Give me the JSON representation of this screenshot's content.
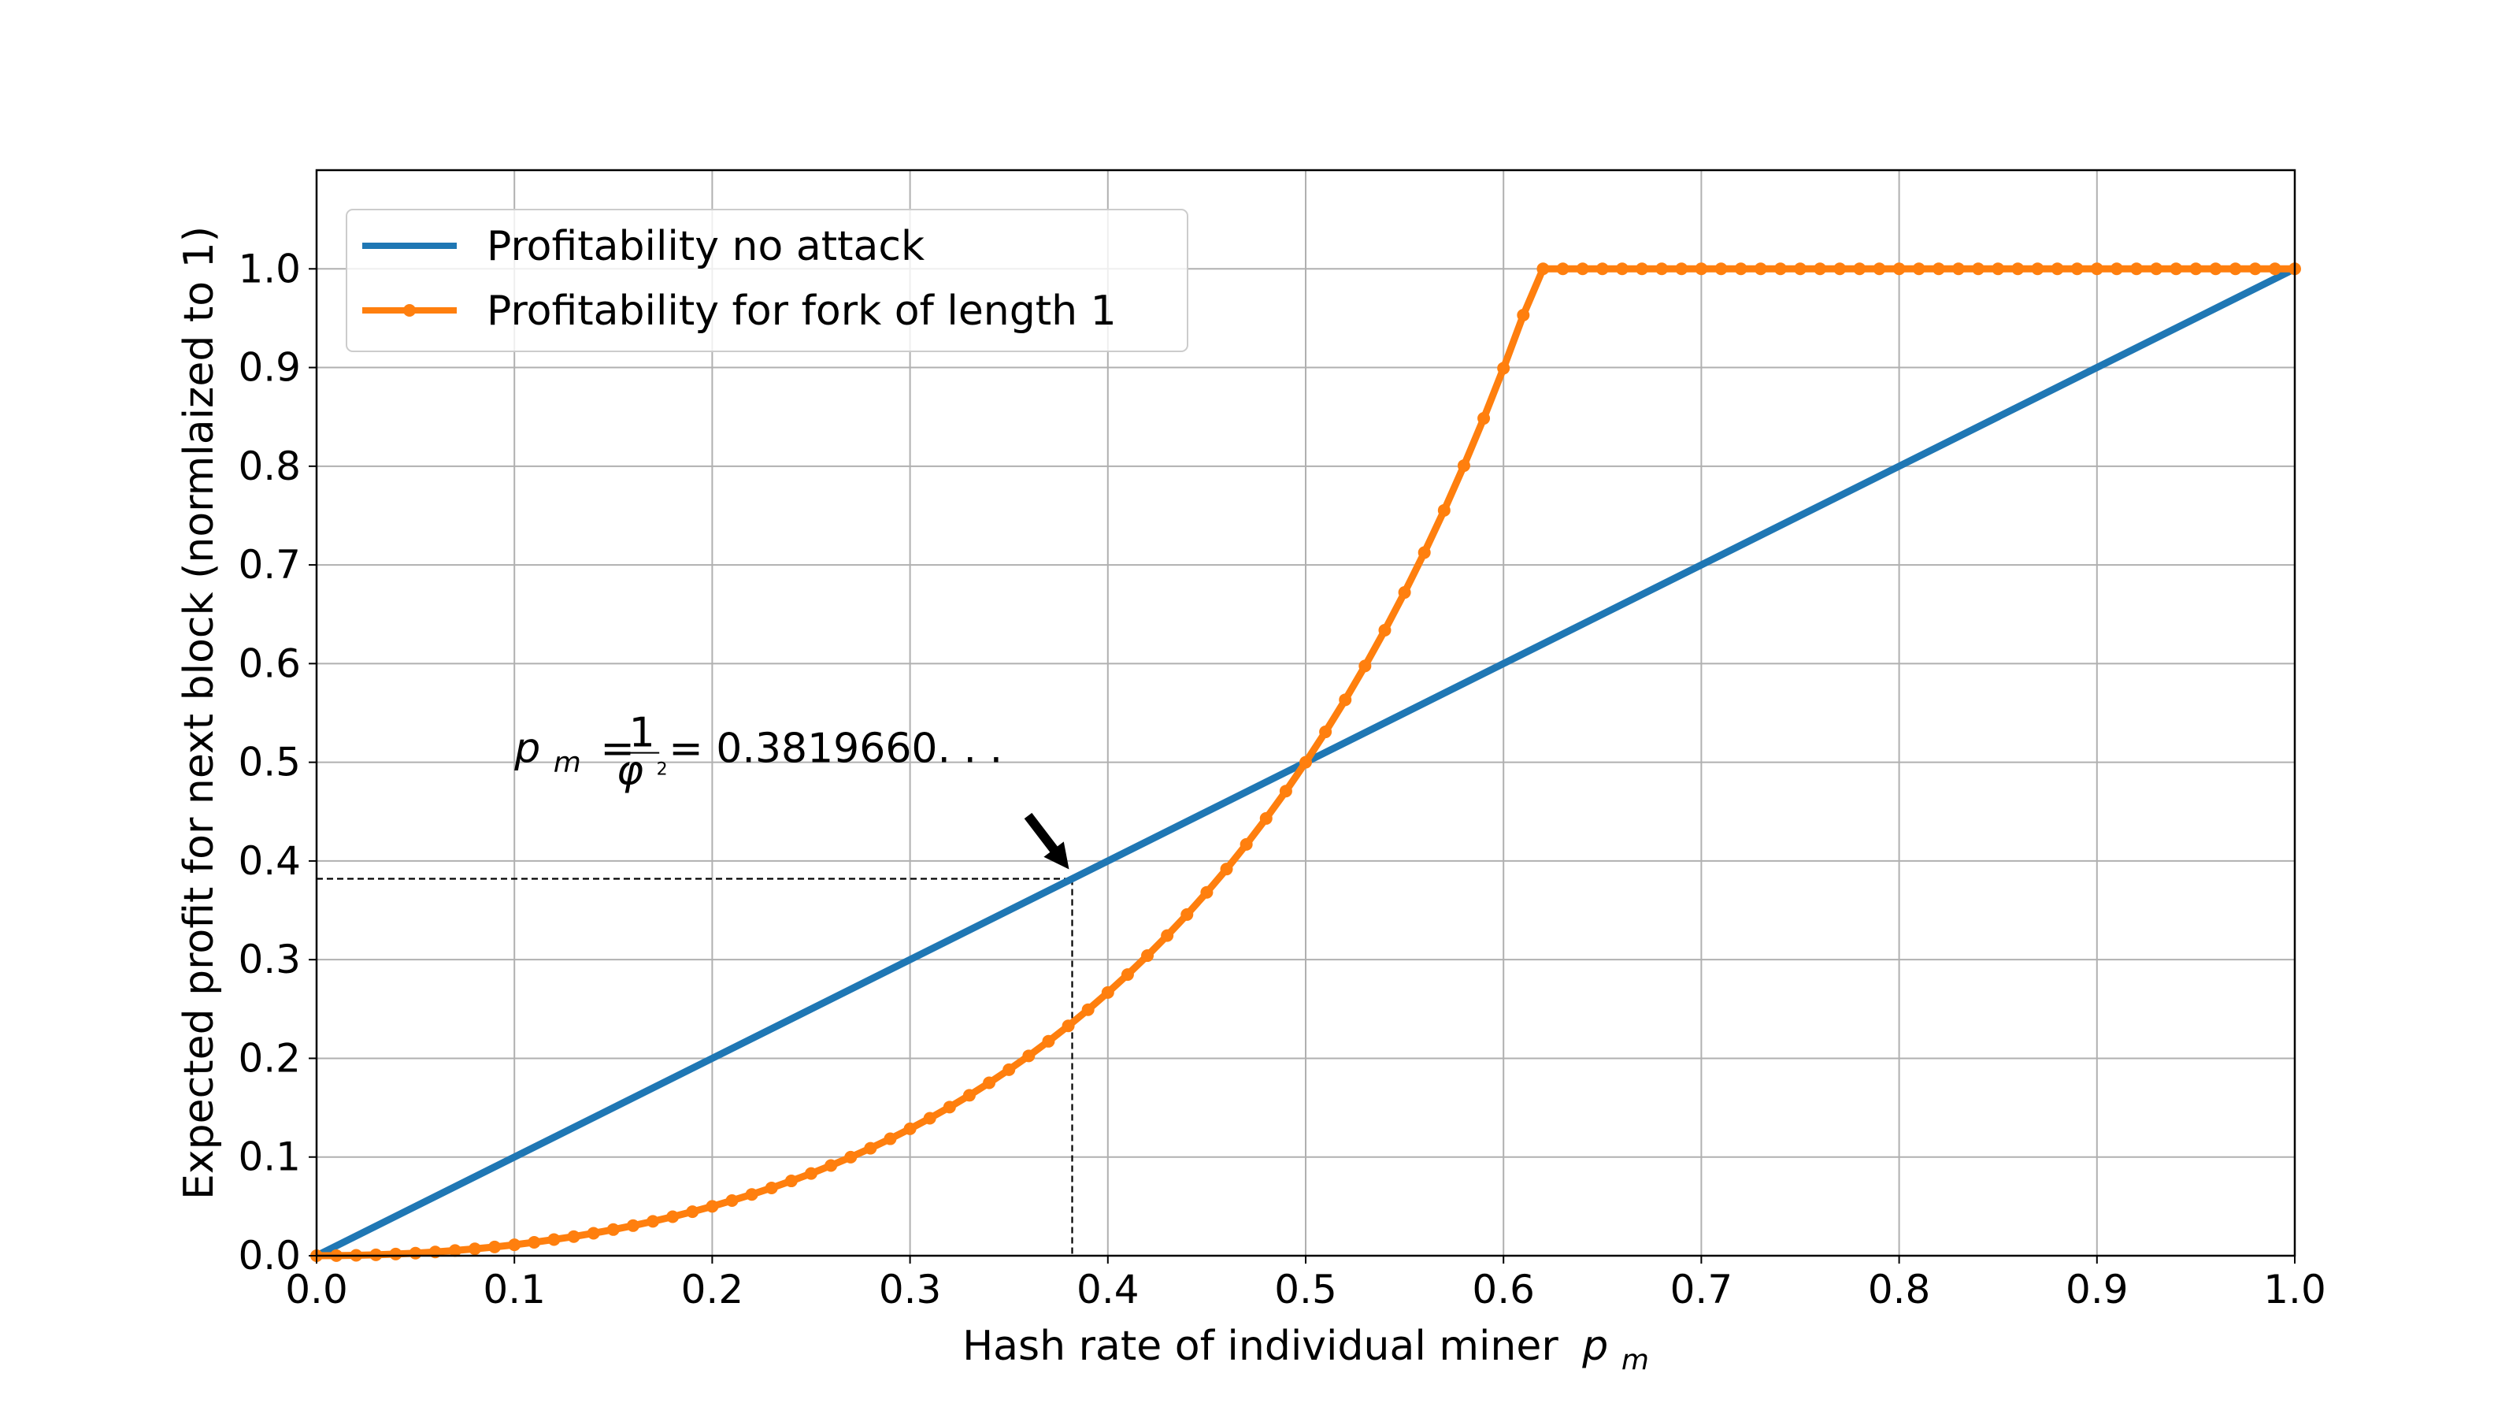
{
  "chart_data": {
    "type": "line",
    "title": "",
    "xlabel": "Hash rate of individual miner",
    "xlabel_symbol": "p",
    "xlabel_subscript": "m",
    "ylabel": "Expected profit for next block (normlaized to 1)",
    "xlim": [
      0.0,
      1.0
    ],
    "ylim": [
      0.0,
      1.1
    ],
    "x_ticks": [
      0.0,
      0.1,
      0.2,
      0.3,
      0.4,
      0.5,
      0.6,
      0.7,
      0.8,
      0.9,
      1.0
    ],
    "x_tick_labels": [
      "0.0",
      "0.1",
      "0.2",
      "0.3",
      "0.4",
      "0.5",
      "0.6",
      "0.7",
      "0.8",
      "0.9",
      "1.0"
    ],
    "y_ticks": [
      0.0,
      0.1,
      0.2,
      0.3,
      0.4,
      0.5,
      0.6,
      0.7,
      0.8,
      0.9,
      1.0
    ],
    "y_tick_labels": [
      "0.0",
      "0.1",
      "0.2",
      "0.3",
      "0.4",
      "0.5",
      "0.6",
      "0.7",
      "0.8",
      "0.9",
      "1.0"
    ],
    "grid": true,
    "legend_position": "top-left",
    "series": [
      {
        "name": "Profitability no attack",
        "color": "#1f77b4",
        "marker": "none",
        "x": [
          0.0,
          1.0
        ],
        "y": [
          0.0,
          1.0
        ]
      },
      {
        "name": "Profitability for fork of length 1",
        "color": "#ff7f0e",
        "marker": "circle",
        "x": [
          0.0,
          0.01,
          0.02,
          0.03,
          0.04,
          0.05,
          0.06,
          0.07,
          0.08,
          0.09,
          0.1,
          0.11,
          0.12,
          0.13,
          0.14,
          0.15,
          0.16,
          0.17,
          0.18,
          0.19,
          0.2,
          0.21,
          0.22,
          0.23,
          0.24,
          0.25,
          0.26,
          0.27,
          0.28,
          0.29,
          0.3,
          0.31,
          0.32,
          0.33,
          0.34,
          0.35,
          0.36,
          0.37,
          0.38,
          0.39,
          0.4,
          0.41,
          0.42,
          0.43,
          0.44,
          0.45,
          0.46,
          0.47,
          0.48,
          0.49,
          0.5,
          0.51,
          0.52,
          0.53,
          0.54,
          0.55,
          0.56,
          0.57,
          0.58,
          0.59,
          0.6,
          0.61,
          0.62,
          0.63,
          0.64,
          0.65,
          0.66,
          0.67,
          0.68,
          0.69,
          0.7,
          0.71,
          0.72,
          0.73,
          0.74,
          0.75,
          0.76,
          0.77,
          0.78,
          0.79,
          0.8,
          0.81,
          0.82,
          0.83,
          0.84,
          0.85,
          0.86,
          0.87,
          0.88,
          0.89,
          0.9,
          0.91,
          0.92,
          0.93,
          0.94,
          0.95,
          0.96,
          0.97,
          0.98,
          0.99,
          1.0
        ],
        "y": [
          0.0,
          0.0001,
          0.0004,
          0.0009,
          0.0017,
          0.0026,
          0.0038,
          0.0053,
          0.007,
          0.0089,
          0.0111,
          0.0136,
          0.0164,
          0.0194,
          0.0228,
          0.0265,
          0.0305,
          0.0348,
          0.0395,
          0.0446,
          0.05,
          0.0559,
          0.0621,
          0.0687,
          0.0758,
          0.0833,
          0.0914,
          0.0999,
          0.1089,
          0.1185,
          0.1286,
          0.1393,
          0.1506,
          0.1625,
          0.1752,
          0.1885,
          0.2025,
          0.2173,
          0.2329,
          0.2493,
          0.2667,
          0.2849,
          0.3041,
          0.3244,
          0.3457,
          0.3682,
          0.3918,
          0.4168,
          0.4431,
          0.4708,
          0.5,
          0.5308,
          0.5633,
          0.5976,
          0.6338,
          0.6721,
          0.7125,
          0.7553,
          0.8006,
          0.8485,
          0.8993,
          0.9531,
          1.0,
          1.0,
          1.0,
          1.0,
          1.0,
          1.0,
          1.0,
          1.0,
          1.0,
          1.0,
          1.0,
          1.0,
          1.0,
          1.0,
          1.0,
          1.0,
          1.0,
          1.0,
          1.0,
          1.0,
          1.0,
          1.0,
          1.0,
          1.0,
          1.0,
          1.0,
          1.0,
          1.0,
          1.0,
          1.0,
          1.0,
          1.0,
          1.0,
          1.0,
          1.0,
          1.0,
          1.0,
          1.0,
          1.0
        ]
      }
    ],
    "annotation": {
      "lhs_symbol": "p",
      "lhs_subscript": "m",
      "eq": "=",
      "numerator": "1",
      "denominator_symbol": "φ",
      "denominator_exponent": "2",
      "value_text": "= 0.3819660. . .",
      "point_x": 0.381966,
      "point_y": 0.381966,
      "arrow_color": "#000000"
    }
  }
}
